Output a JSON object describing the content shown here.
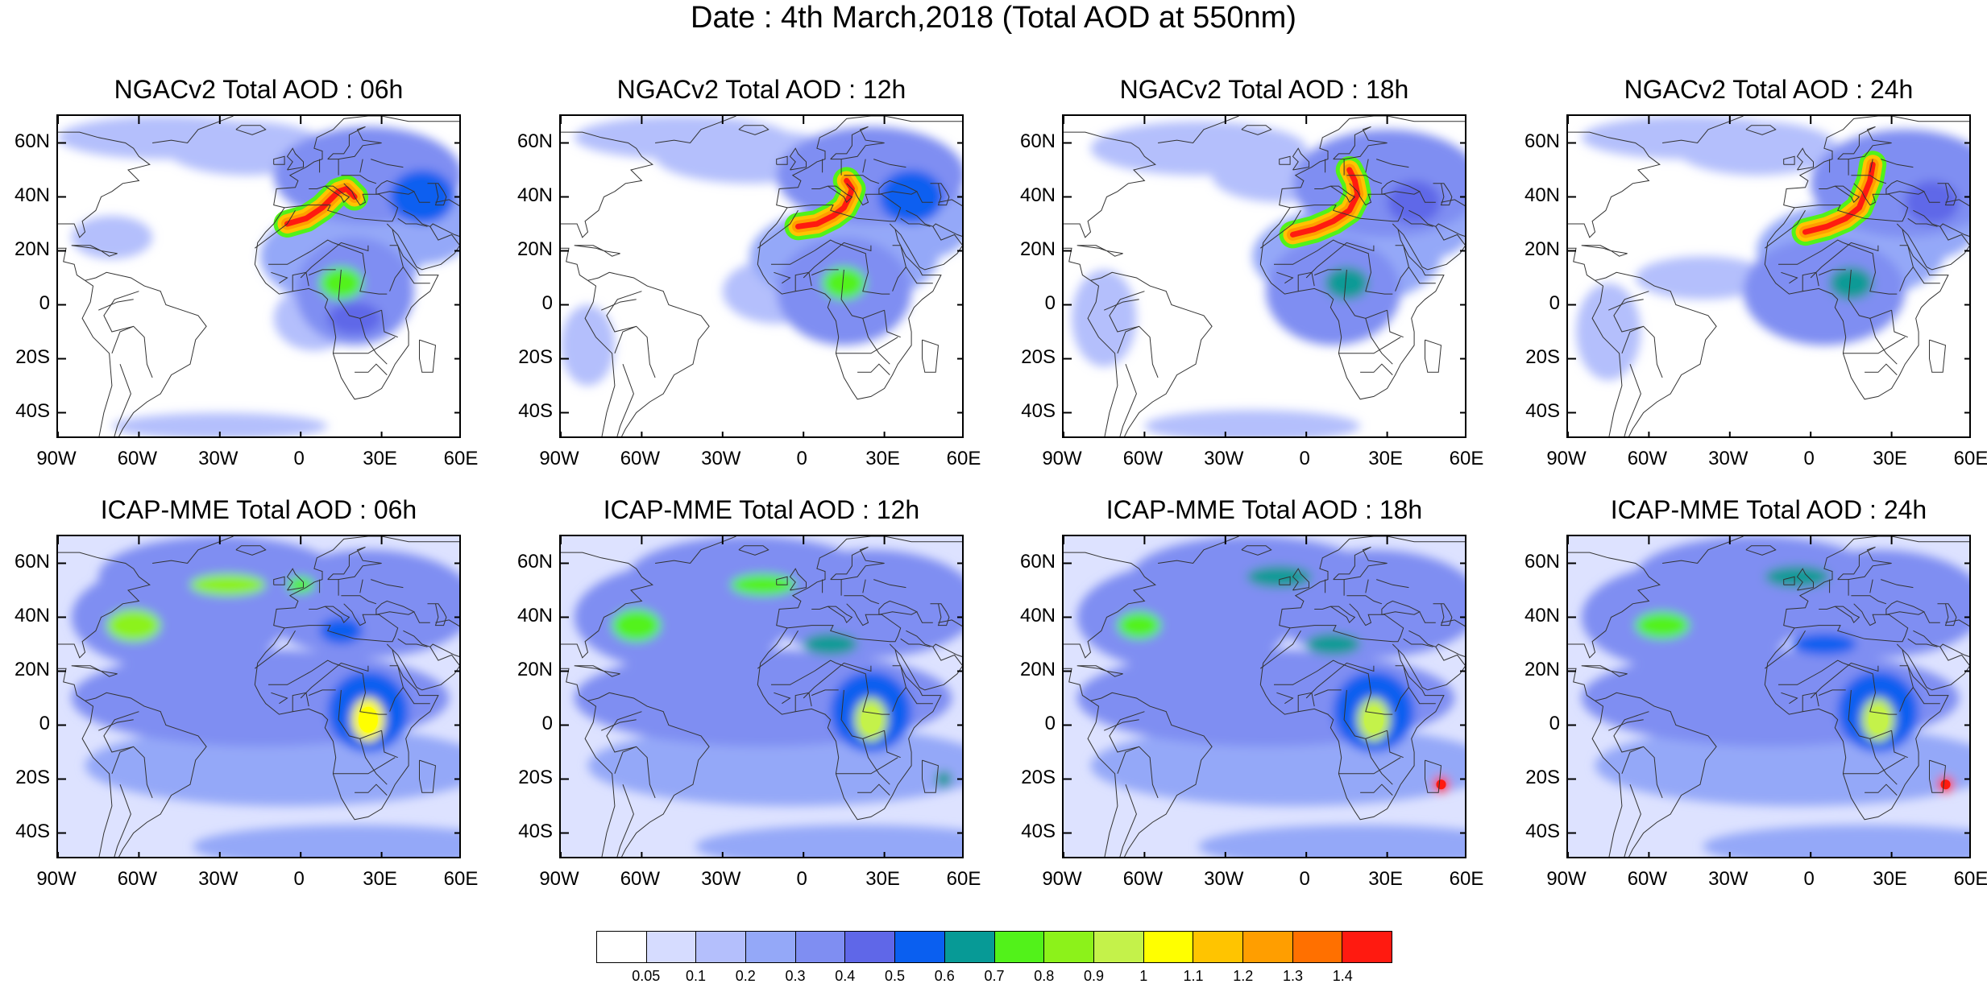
{
  "title": "Date : 4th March,2018 (Total AOD at 550nm)",
  "panels": [
    {
      "title": "NGACv2 Total AOD : 06h",
      "model": "NGACv2",
      "hour": "06h"
    },
    {
      "title": "NGACv2 Total AOD : 12h",
      "model": "NGACv2",
      "hour": "12h"
    },
    {
      "title": "NGACv2 Total AOD : 18h",
      "model": "NGACv2",
      "hour": "18h"
    },
    {
      "title": "NGACv2 Total AOD : 24h",
      "model": "NGACv2",
      "hour": "24h"
    },
    {
      "title": "ICAP-MME Total AOD : 06h",
      "model": "ICAP-MME",
      "hour": "06h"
    },
    {
      "title": "ICAP-MME Total AOD : 12h",
      "model": "ICAP-MME",
      "hour": "12h"
    },
    {
      "title": "ICAP-MME Total AOD : 18h",
      "model": "ICAP-MME",
      "hour": "18h"
    },
    {
      "title": "ICAP-MME Total AOD : 24h",
      "model": "ICAP-MME",
      "hour": "24h"
    }
  ],
  "lat_labels": [
    "60N",
    "40N",
    "20N",
    "0",
    "20S",
    "40S"
  ],
  "lon_labels": [
    "90W",
    "60W",
    "30W",
    "0",
    "30E",
    "60E"
  ],
  "colorbar": {
    "labels": [
      "0.05",
      "0.1",
      "0.2",
      "0.3",
      "0.4",
      "0.5",
      "0.6",
      "0.7",
      "0.8",
      "0.9",
      "1",
      "1.1",
      "1.2",
      "1.3",
      "1.4"
    ],
    "colors": [
      "#ffffff",
      "#d6dcff",
      "#b4bffc",
      "#94a8f8",
      "#7f8ef2",
      "#5f67e8",
      "#0a5ff0",
      "#079a96",
      "#52f21a",
      "#8cf21a",
      "#c4f24a",
      "#ffff00",
      "#ffc400",
      "#ff9e00",
      "#ff7000",
      "#ff1a10"
    ]
  },
  "chart_data": {
    "type": "heatmap",
    "title": "Date : 4th March,2018 (Total AOD at 550nm)",
    "variable": "Total AOD at 550nm",
    "lon_range": [
      -90,
      60
    ],
    "lat_range": [
      -50,
      70
    ],
    "levels": [
      0.05,
      0.1,
      0.2,
      0.3,
      0.4,
      0.5,
      0.6,
      0.7,
      0.8,
      0.9,
      1,
      1.1,
      1.2,
      1.3,
      1.4
    ],
    "panels": [
      {
        "model": "NGACv2",
        "hour": "06h",
        "features": [
          {
            "region": "Mediterranean / N. Africa dust plume",
            "lon": 12,
            "lat": 35,
            "aod": 1.4
          },
          {
            "region": "Central Africa",
            "lon": 15,
            "lat": 8,
            "aod": 0.8
          },
          {
            "region": "Middle East",
            "lon": 45,
            "lat": 40,
            "aod": 0.7
          }
        ]
      },
      {
        "model": "NGACv2",
        "hour": "12h",
        "features": [
          {
            "region": "Mediterranean / N. Africa dust plume",
            "lon": 15,
            "lat": 38,
            "aod": 1.4
          },
          {
            "region": "Central Africa",
            "lon": 15,
            "lat": 8,
            "aod": 0.7
          }
        ]
      },
      {
        "model": "NGACv2",
        "hour": "18h",
        "features": [
          {
            "region": "Mediterranean / N. Africa dust plume",
            "lon": 18,
            "lat": 40,
            "aod": 1.4
          },
          {
            "region": "Central Africa",
            "lon": 15,
            "lat": 8,
            "aod": 0.6
          }
        ]
      },
      {
        "model": "NGACv2",
        "hour": "24h",
        "features": [
          {
            "region": "Mediterranean / E. Europe dust plume",
            "lon": 22,
            "lat": 42,
            "aod": 1.4
          },
          {
            "region": "Central Africa",
            "lon": 15,
            "lat": 8,
            "aod": 0.6
          }
        ]
      },
      {
        "model": "ICAP-MME",
        "hour": "06h",
        "features": [
          {
            "region": "W. Atlantic",
            "lon": -62,
            "lat": 37,
            "aod": 1.0
          },
          {
            "region": "N. Atlantic",
            "lon": -25,
            "lat": 52,
            "aod": 0.9
          },
          {
            "region": "Central Africa",
            "lon": 25,
            "lat": 2,
            "aod": 1.1
          }
        ]
      },
      {
        "model": "ICAP-MME",
        "hour": "12h",
        "features": [
          {
            "region": "W. Atlantic",
            "lon": -62,
            "lat": 37,
            "aod": 0.9
          },
          {
            "region": "N. Atlantic",
            "lon": -15,
            "lat": 52,
            "aod": 0.8
          },
          {
            "region": "Central Africa",
            "lon": 25,
            "lat": 2,
            "aod": 1.0
          }
        ]
      },
      {
        "model": "ICAP-MME",
        "hour": "18h",
        "features": [
          {
            "region": "W. Atlantic",
            "lon": -62,
            "lat": 37,
            "aod": 0.8
          },
          {
            "region": "Central Africa",
            "lon": 25,
            "lat": 2,
            "aod": 1.0
          },
          {
            "region": "Madagascar",
            "lon": 50,
            "lat": -22,
            "aod": 1.4
          }
        ]
      },
      {
        "model": "ICAP-MME",
        "hour": "24h",
        "features": [
          {
            "region": "W. Atlantic",
            "lon": -55,
            "lat": 37,
            "aod": 0.8
          },
          {
            "region": "Central Africa",
            "lon": 25,
            "lat": 2,
            "aod": 1.0
          },
          {
            "region": "Madagascar",
            "lon": 50,
            "lat": -22,
            "aod": 1.4
          }
        ]
      }
    ]
  }
}
